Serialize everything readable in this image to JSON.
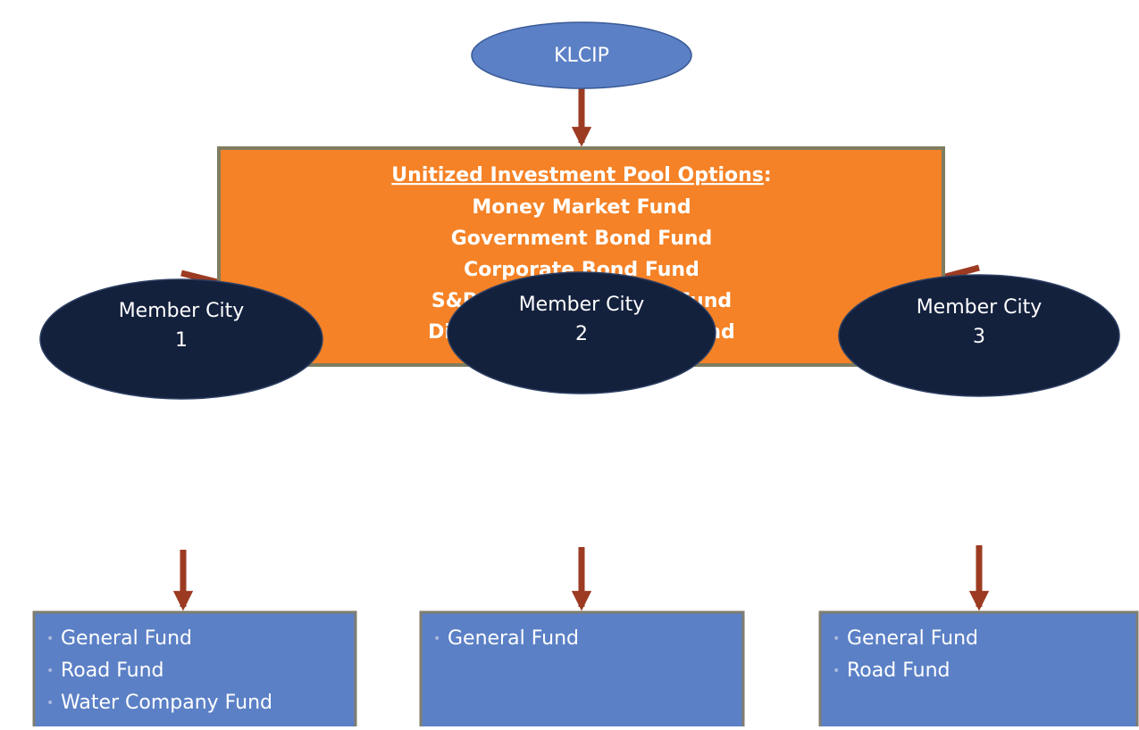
{
  "root": {
    "label": "KLCIP"
  },
  "pool": {
    "title": "Unitized Investment Pool Options",
    "title_punctuation": ":",
    "items": [
      "Money Market Fund",
      "Government Bond Fund",
      "Corporate Bond Fund",
      "S&P 500 Equity Index Fund",
      "Dividend Focus Equity Fund"
    ]
  },
  "members": [
    {
      "name": "Member City",
      "number": "1",
      "funds": [
        "General Fund",
        "Road Fund",
        "Water Company Fund"
      ]
    },
    {
      "name": "Member City",
      "number": "2",
      "funds": [
        "General Fund"
      ]
    },
    {
      "name": "Member City",
      "number": "3",
      "funds": [
        "General Fund",
        "Road Fund"
      ]
    }
  ]
}
